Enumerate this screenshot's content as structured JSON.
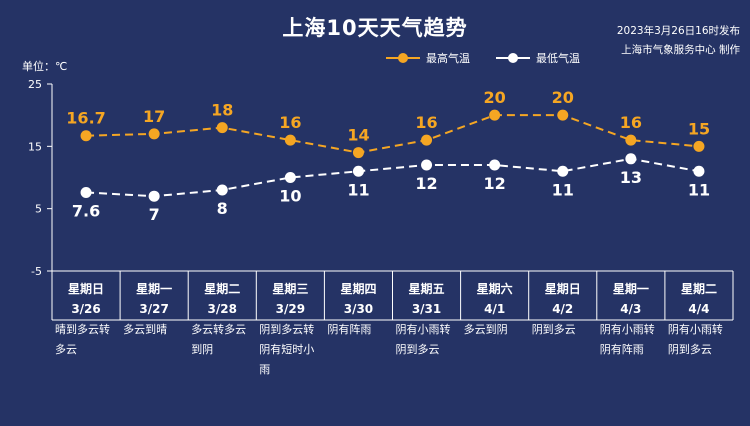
{
  "header": {
    "title": "上海10天天气趋势",
    "publish_time": "2023年3月26日16时发布",
    "producer": "上海市气象服务中心 制作"
  },
  "colors": {
    "background": "#253365",
    "high_series": "#f5a623",
    "low_series": "#ffffff",
    "axis": "#ffffff"
  },
  "chart_data": {
    "type": "line",
    "unit_label": "单位：℃",
    "ylim": [
      -5,
      25
    ],
    "yticks": [
      -5,
      5,
      15,
      25
    ],
    "legend_position": "top-center",
    "x": [
      {
        "weekday": "星期日",
        "date": "3/26"
      },
      {
        "weekday": "星期一",
        "date": "3/27"
      },
      {
        "weekday": "星期二",
        "date": "3/28"
      },
      {
        "weekday": "星期三",
        "date": "3/29"
      },
      {
        "weekday": "星期四",
        "date": "3/30"
      },
      {
        "weekday": "星期五",
        "date": "3/31"
      },
      {
        "weekday": "星期六",
        "date": "4/1"
      },
      {
        "weekday": "星期日",
        "date": "4/2"
      },
      {
        "weekday": "星期一",
        "date": "4/3"
      },
      {
        "weekday": "星期二",
        "date": "4/4"
      }
    ],
    "series": [
      {
        "name": "最高气温",
        "values": [
          16.7,
          17,
          18,
          16,
          14,
          16,
          20,
          20,
          16,
          15
        ],
        "labels": [
          "16.7",
          "17",
          "18",
          "16",
          "14",
          "16",
          "20",
          "20",
          "16",
          "15"
        ]
      },
      {
        "name": "最低气温",
        "values": [
          7.6,
          7,
          8,
          10,
          11,
          12,
          12,
          11,
          13,
          11
        ],
        "labels": [
          "7.6",
          "7",
          "8",
          "10",
          "11",
          "12",
          "12",
          "11",
          "13",
          "11"
        ]
      }
    ],
    "weather": [
      "晴到多云转多云",
      "多云到晴",
      "多云转多云到阴",
      "阴到多云转阴有短时小雨",
      "阴有阵雨",
      "阴有小雨转阴到多云",
      "多云到阴",
      "阴到多云",
      "阴有小雨转阴有阵雨",
      "阴有小雨转阴到多云"
    ]
  }
}
